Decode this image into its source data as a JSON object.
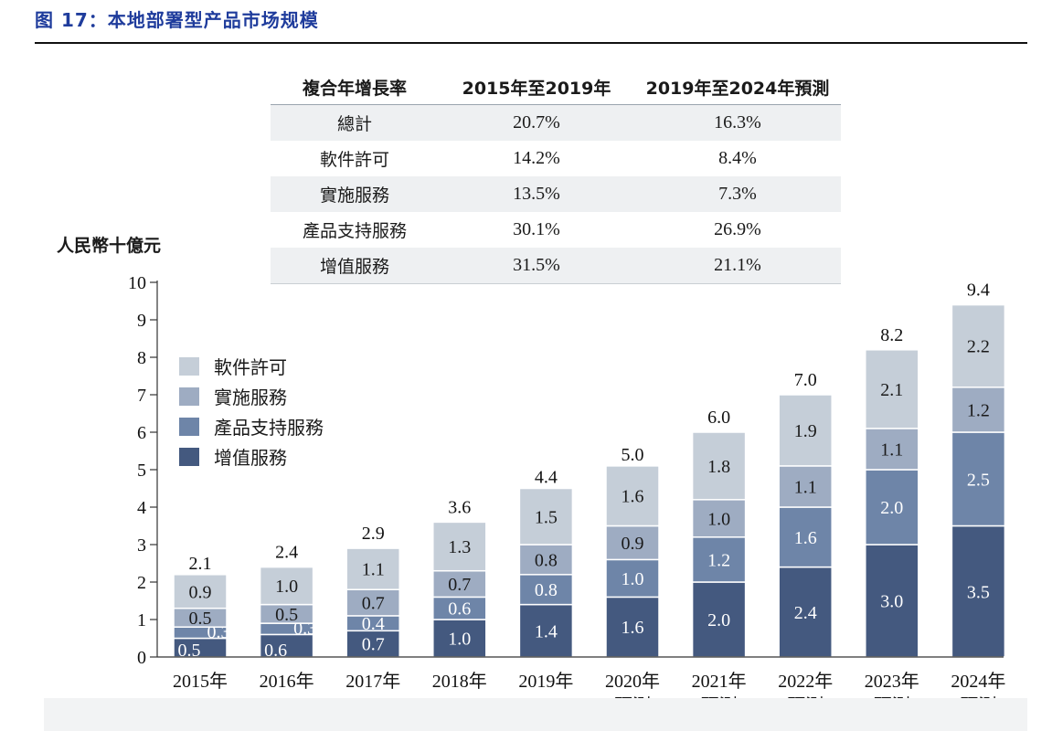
{
  "figure_title": "图 17：本地部署型产品市场规模",
  "colors": {
    "title": "#1f3c9c",
    "software_license": "#c5ced8",
    "implementation": "#9eacc2",
    "product_support": "#6e85a8",
    "value_added": "#44597f"
  },
  "cagr_table": {
    "headers": [
      "複合年增長率",
      "2015年至2019年",
      "2019年至2024年預測"
    ],
    "rows": [
      {
        "label": "總計",
        "v1": "20.7%",
        "v2": "16.3%"
      },
      {
        "label": "軟件許可",
        "v1": "14.2%",
        "v2": "8.4%"
      },
      {
        "label": "實施服務",
        "v1": "13.5%",
        "v2": "7.3%"
      },
      {
        "label": "產品支持服務",
        "v1": "30.1%",
        "v2": "26.9%"
      },
      {
        "label": "增值服務",
        "v1": "31.5%",
        "v2": "21.1%"
      }
    ]
  },
  "chart_data": {
    "type": "bar",
    "stacked": true,
    "title": "本地部署型产品市场规模",
    "ylabel": "人民幣十億元",
    "xlabel": "",
    "ylim": [
      0,
      10
    ],
    "yticks": [
      0,
      1,
      2,
      3,
      4,
      5,
      6,
      7,
      8,
      9,
      10
    ],
    "categories": [
      [
        "2015年"
      ],
      [
        "2016年"
      ],
      [
        "2017年"
      ],
      [
        "2018年"
      ],
      [
        "2019年"
      ],
      [
        "2020年",
        "預測"
      ],
      [
        "2021年",
        "預測"
      ],
      [
        "2022年",
        "預測"
      ],
      [
        "2023年",
        "預測"
      ],
      [
        "2024年",
        "預測"
      ]
    ],
    "series": [
      {
        "name": "增值服務",
        "values": [
          0.5,
          0.6,
          0.7,
          1.0,
          1.4,
          1.6,
          2.0,
          2.4,
          3.0,
          3.5
        ]
      },
      {
        "name": "產品支持服務",
        "values": [
          0.3,
          0.3,
          0.4,
          0.6,
          0.8,
          1.0,
          1.2,
          1.6,
          2.0,
          2.5
        ]
      },
      {
        "name": "實施服務",
        "values": [
          0.5,
          0.5,
          0.7,
          0.7,
          0.8,
          0.9,
          1.0,
          1.1,
          1.1,
          1.2
        ]
      },
      {
        "name": "軟件許可",
        "values": [
          0.9,
          1.0,
          1.1,
          1.3,
          1.5,
          1.6,
          1.8,
          1.9,
          2.1,
          2.2
        ]
      }
    ],
    "totals": [
      2.1,
      2.4,
      2.9,
      3.6,
      4.4,
      5.0,
      6.0,
      7.0,
      8.2,
      9.4
    ],
    "legend": [
      "軟件許可",
      "實施服務",
      "產品支持服務",
      "增值服務"
    ],
    "legend_position": "upper-left"
  }
}
